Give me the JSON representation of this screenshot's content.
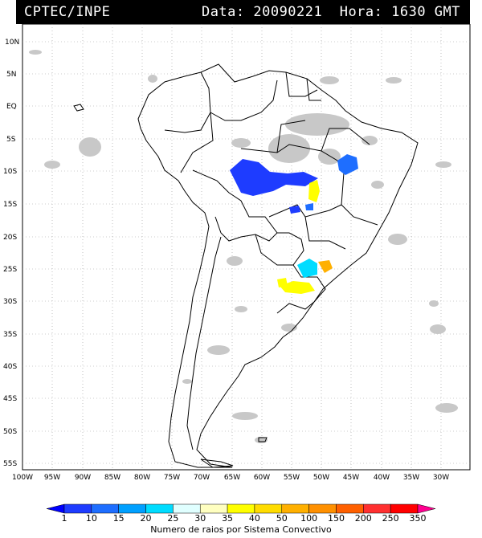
{
  "header": {
    "left": "CPTEC/INPE",
    "right": "Data: 20090221  Hora: 1630 GMT"
  },
  "map": {
    "lon_range": [
      -100,
      -25
    ],
    "lat_range": [
      -56,
      12.5
    ],
    "lat_labels": [
      "10N",
      "5N",
      "EQ",
      "5S",
      "10S",
      "15S",
      "20S",
      "25S",
      "30S",
      "35S",
      "40S",
      "45S",
      "50S",
      "55S"
    ],
    "lon_labels": [
      "100W",
      "95W",
      "90W",
      "85W",
      "80W",
      "75W",
      "70W",
      "65W",
      "60W",
      "55W",
      "50W",
      "45W",
      "40W",
      "35W",
      "30W"
    ]
  },
  "legend": {
    "title": "Numero de raios por Sistema Convectivo",
    "values": [
      "1",
      "10",
      "15",
      "20",
      "25",
      "30",
      "35",
      "40",
      "50",
      "100",
      "150",
      "200",
      "250",
      "350"
    ],
    "colors": [
      "#0000ff",
      "#1e3cff",
      "#1e6eff",
      "#00a0ff",
      "#00dcff",
      "#e0ffff",
      "#ffffc0",
      "#ffff00",
      "#ffdc00",
      "#ffb000",
      "#ff9000",
      "#ff6000",
      "#ff3030",
      "#ff0000",
      "#ff0090"
    ]
  }
}
